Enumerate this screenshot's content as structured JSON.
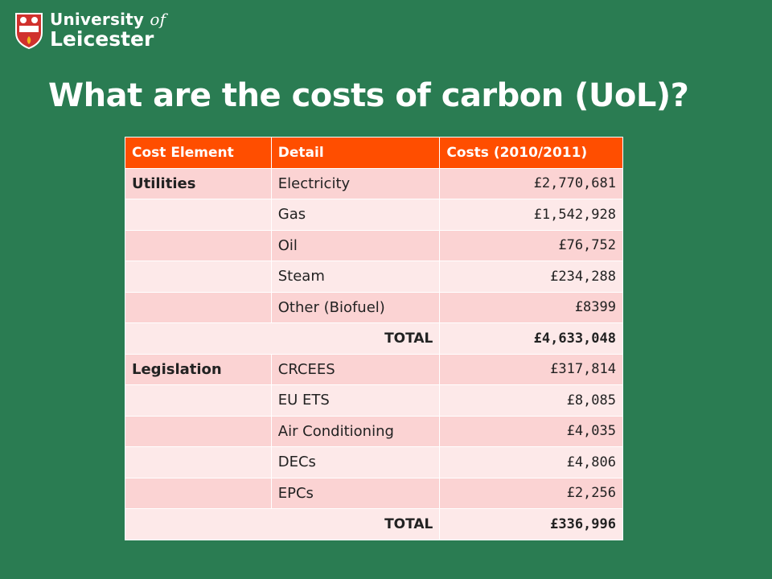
{
  "logo": {
    "line1_a": "University",
    "line1_b": "of",
    "line2": "Leicester"
  },
  "title": "What are the costs of carbon (UoL)?",
  "table": {
    "headers": [
      "Cost Element",
      "Detail",
      "Costs (2010/2011)"
    ],
    "rows": [
      {
        "category": "Utilities",
        "detail": "Electricity",
        "cost": "£2,770,681"
      },
      {
        "category": "",
        "detail": "Gas",
        "cost": "£1,542,928"
      },
      {
        "category": "",
        "detail": "Oil",
        "cost": "£76,752"
      },
      {
        "category": "",
        "detail": "Steam",
        "cost": "£234,288"
      },
      {
        "category": "",
        "detail": "Other (Biofuel)",
        "cost": "£8399"
      },
      {
        "total_label": "TOTAL",
        "total": "£4,633,048"
      },
      {
        "category": "Legislation",
        "detail": "CRCEES",
        "cost": "£317,814"
      },
      {
        "category": "",
        "detail": "EU ETS",
        "cost": "£8,085"
      },
      {
        "category": "",
        "detail": "Air Conditioning",
        "cost": "£4,035"
      },
      {
        "category": "",
        "detail": "DECs",
        "cost": "£4,806"
      },
      {
        "category": "",
        "detail": "EPCs",
        "cost": "£2,256"
      },
      {
        "total_label": "TOTAL",
        "total": "£336,996"
      }
    ]
  },
  "colors": {
    "background": "#2a7c52",
    "header": "#ff4e00",
    "row_odd": "#fbd3d3",
    "row_even": "#fde9e9"
  }
}
